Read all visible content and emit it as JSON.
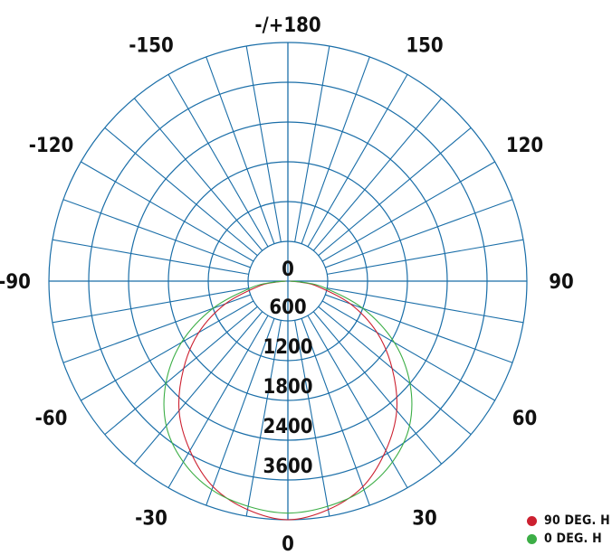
{
  "chart_data": {
    "type": "polar",
    "angle_labels": [
      {
        "deg": 180,
        "text": "-/+180"
      },
      {
        "deg": -150,
        "text": "-150"
      },
      {
        "deg": 150,
        "text": "150"
      },
      {
        "deg": -120,
        "text": "-120"
      },
      {
        "deg": 120,
        "text": "120"
      },
      {
        "deg": -90,
        "text": "-90"
      },
      {
        "deg": 90,
        "text": "90"
      },
      {
        "deg": -60,
        "text": "-60"
      },
      {
        "deg": 60,
        "text": "60"
      },
      {
        "deg": -30,
        "text": "-30"
      },
      {
        "deg": 30,
        "text": "30"
      },
      {
        "deg": 0,
        "text": "0"
      }
    ],
    "radial_ticks": [
      0,
      600,
      1200,
      1800,
      2400,
      3600
    ],
    "radial_max": 3600,
    "angular_grid_step_deg": 10,
    "series": [
      {
        "name": "90 DEG. H",
        "color": "#cc2030",
        "angles": [
          0,
          10,
          20,
          30,
          40,
          50,
          60,
          70,
          80,
          85,
          90
        ],
        "values": [
          3600,
          3500,
          3300,
          2950,
          2550,
          2050,
          1550,
          1000,
          450,
          200,
          30
        ]
      },
      {
        "name": "0 DEG. H",
        "color": "#3cae46",
        "angles": [
          0,
          10,
          20,
          30,
          40,
          50,
          60,
          70,
          80,
          85,
          90
        ],
        "values": [
          3500,
          3450,
          3350,
          3150,
          2850,
          2400,
          1850,
          1200,
          550,
          250,
          30
        ]
      }
    ],
    "grid_color": "#1a6ea8",
    "symmetric": true
  }
}
